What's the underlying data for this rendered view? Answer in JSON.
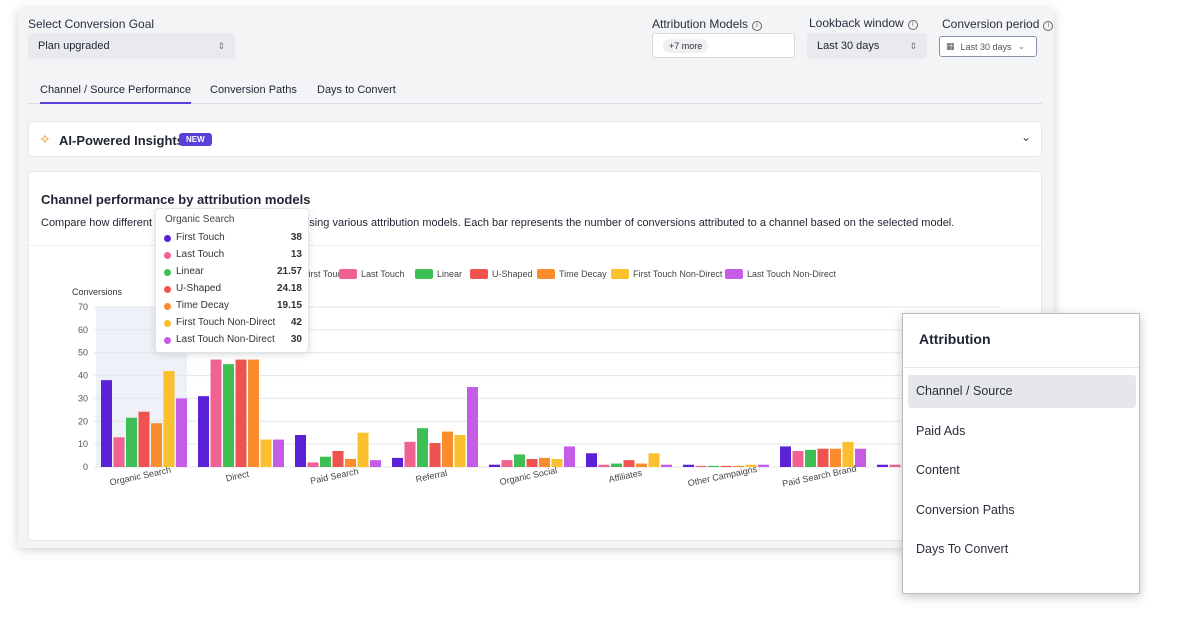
{
  "filters": {
    "goal": {
      "label": "Select Conversion Goal",
      "value": "Plan upgraded"
    },
    "models": {
      "label": "Attribution Models",
      "chip": "+7 more"
    },
    "lookback": {
      "label": "Lookback window",
      "value": "Last 30 days"
    },
    "period": {
      "label": "Conversion period",
      "value": "Last 30 days"
    }
  },
  "tabs": [
    "Channel / Source Performance",
    "Conversion Paths",
    "Days to Convert"
  ],
  "insights": {
    "title": "AI-Powered Insights",
    "badge": "NEW"
  },
  "chart_card": {
    "title": "Channel performance by attribution models",
    "description": "Compare how different models distribute conversions using various attribution models. Each bar represents the number of conversions attributed to a channel based on the selected model."
  },
  "tooltip": {
    "title": "Organic Search",
    "rows": [
      {
        "name": "First Touch",
        "value": "38"
      },
      {
        "name": "Last Touch",
        "value": "13"
      },
      {
        "name": "Linear",
        "value": "21.57"
      },
      {
        "name": "U-Shaped",
        "value": "24.18"
      },
      {
        "name": "Time Decay",
        "value": "19.15"
      },
      {
        "name": "First Touch Non-Direct",
        "value": "42"
      },
      {
        "name": "Last Touch Non-Direct",
        "value": "30"
      }
    ]
  },
  "colors": {
    "accent": "#5b3fd9",
    "series": [
      "#5b21d6",
      "#f06292",
      "#3dbf55",
      "#ef5350",
      "#fb8c2e",
      "#fbc02d",
      "#c45ce8"
    ]
  },
  "chart_data": {
    "type": "bar",
    "ylabel": "Conversions",
    "ylim": [
      0,
      70
    ],
    "yticks": [
      0,
      10,
      20,
      30,
      40,
      50,
      60,
      70
    ],
    "categories": [
      "Organic Search",
      "Direct",
      "Paid Search",
      "Referral",
      "Organic Social",
      "Affiliates",
      "Other Campaigns",
      "Paid Search Brand",
      ""
    ],
    "series": [
      {
        "name": "First Touch",
        "values": [
          38,
          31,
          14,
          4,
          1,
          6,
          1,
          9,
          1
        ]
      },
      {
        "name": "Last Touch",
        "values": [
          13,
          47,
          2,
          11,
          3,
          1,
          0.5,
          7,
          1
        ]
      },
      {
        "name": "Linear",
        "values": [
          21.57,
          45,
          4.5,
          17,
          5.5,
          1.5,
          0.5,
          7.5,
          1
        ]
      },
      {
        "name": "U-Shaped",
        "values": [
          24.18,
          47,
          7,
          10.5,
          3.5,
          3,
          0.5,
          8,
          1
        ]
      },
      {
        "name": "Time Decay",
        "values": [
          19.15,
          47,
          3.5,
          15.5,
          4,
          1.5,
          0.5,
          8,
          1
        ]
      },
      {
        "name": "First Touch Non-Direct",
        "values": [
          42,
          12,
          15,
          14,
          3.5,
          6,
          1,
          11,
          1
        ]
      },
      {
        "name": "Last Touch Non-Direct",
        "values": [
          30,
          12,
          3,
          35,
          9,
          1,
          1,
          8,
          1
        ]
      }
    ]
  },
  "panel": {
    "title": "Attribution",
    "items": [
      "Channel / Source",
      "Paid Ads",
      "Content",
      "Conversion Paths",
      "Days To Convert"
    ]
  }
}
